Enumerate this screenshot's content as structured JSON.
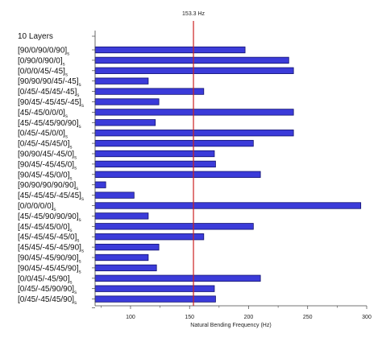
{
  "chart_data": {
    "type": "bar",
    "orientation": "horizontal",
    "title": "",
    "xlabel": "Natural Bending Frequency (Hz)",
    "ylabel": "",
    "group_label": "10 Layers",
    "xlim": [
      70,
      300
    ],
    "x_ticks": [
      100,
      150,
      200,
      250,
      300
    ],
    "reference_line": {
      "value": 153.3,
      "label": "153.3 Hz",
      "color": "#cc2222"
    },
    "bar_color": "#3b3bd9",
    "bar_edge_color": "#101070",
    "categories": [
      "[90/0/90/0/90]s",
      "[0/90/0/90/0]s",
      "[0/0/0/45/-45]s",
      "[90/90/90/45/-45]s",
      "[0/45/-45/45/-45]s",
      "[90/45/-45/45/-45]s",
      "[45/-45/0/0/0]s",
      "[45/-45/45/90/90]s",
      "[0/45/-45/0/0]s",
      "[0/45/-45/45/0]s",
      "[90/90/45/-45/0]s",
      "[90/45/-45/45/0]s",
      "[90/45/-45/0/0]s",
      "[90/90/90/90/90]s",
      "[45/-45/45/-45/45]s",
      "[0/0/0/0/0]s",
      "[45/-45/90/90/90]s",
      "[45/-45/45/0/0]s",
      "[45/-45/45/-45/0]s",
      "[45/45/-45/-45/90]s",
      "[90/45/-45/90/90]s",
      "[90/45/-45/45/90]s",
      "[0/0/45/-45/90]s",
      "[0/45/-45/90/90]s",
      "[0/45/-45/45/90]s"
    ],
    "values": [
      197,
      234,
      238,
      115,
      162,
      124,
      238,
      121,
      238,
      204,
      171,
      172,
      210,
      79,
      103,
      295,
      115,
      204,
      162,
      124,
      115,
      122,
      210,
      171,
      172
    ]
  }
}
